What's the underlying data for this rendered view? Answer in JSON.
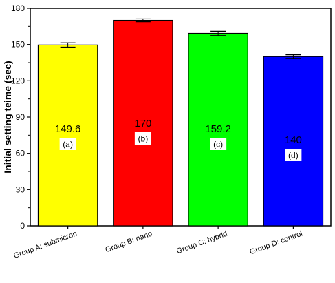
{
  "chart_data": {
    "type": "bar",
    "ylabel": "Initial setting teime (sec)",
    "xlabel": "",
    "ylim": [
      0,
      180
    ],
    "yticks": [
      0,
      30,
      60,
      90,
      120,
      150,
      180
    ],
    "categories": [
      "Group A: submicron",
      "Group B: nano",
      "Group C: hybrid",
      "Group D: control"
    ],
    "values": [
      149.6,
      170,
      159.2,
      140
    ],
    "errors": [
      1.8,
      1.2,
      1.8,
      1.5
    ],
    "value_labels": [
      "149.6",
      "170",
      "159.2",
      "140"
    ],
    "letters": [
      "(a)",
      "(b)",
      "(c)",
      "(d)"
    ],
    "colors": [
      "#ffff00",
      "#ff0000",
      "#00ff00",
      "#0000ff"
    ],
    "grid": false
  }
}
